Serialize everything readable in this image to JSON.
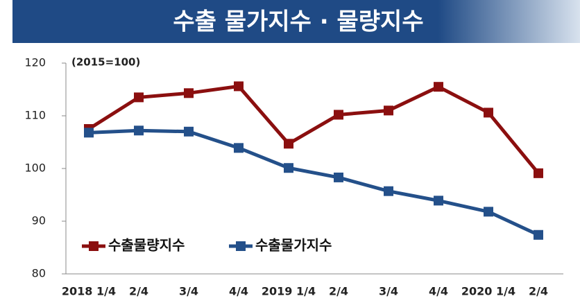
{
  "chart_data": {
    "type": "line",
    "title": "수출 물가지수 · 물량지수",
    "subtitle": "(2015=100)",
    "categories": [
      "2018 1/4",
      "2/4",
      "3/4",
      "4/4",
      "2019 1/4",
      "2/4",
      "3/4",
      "4/4",
      "2020 1/4",
      "2/4"
    ],
    "series": [
      {
        "name": "수출물량지수",
        "color": "#8b0f0f",
        "values": [
          107.5,
          113.5,
          114.3,
          115.6,
          104.7,
          110.2,
          111.0,
          115.5,
          110.6,
          99.1
        ]
      },
      {
        "name": "수출물가지수",
        "color": "#24508a",
        "values": [
          106.8,
          107.2,
          107.0,
          103.9,
          100.1,
          98.3,
          95.7,
          93.9,
          91.8,
          87.4
        ]
      }
    ],
    "ylim": [
      80,
      120
    ],
    "yticks": [
      80,
      90,
      100,
      110,
      120
    ],
    "legend": "lower-left"
  }
}
